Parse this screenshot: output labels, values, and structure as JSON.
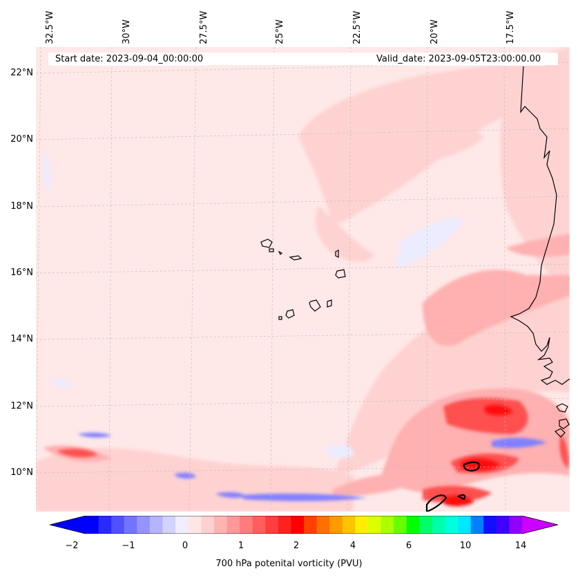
{
  "header": {
    "start_date": "Start date: 2023-09-04_00:00:00",
    "valid_date": "Valid_date: 2023-09-05T23:00:00.00"
  },
  "longitude_labels": [
    "32.5°W",
    "30°W",
    "27.5°W",
    "25°W",
    "22.5°W",
    "20°W",
    "17.5°W"
  ],
  "latitude_labels": [
    "22°N",
    "20°N",
    "18°N",
    "16°N",
    "14°N",
    "12°N",
    "10°N"
  ],
  "colorbar": {
    "title": "700 hPa potenital vorticity (PVU)",
    "tick_labels": [
      "−2",
      "−1",
      "0",
      "1",
      "2",
      "4",
      "6",
      "10",
      "14"
    ],
    "colors": [
      "#0000ff",
      "#2a2aff",
      "#5050ff",
      "#7474ff",
      "#9494ff",
      "#b4b4ff",
      "#d2d2ff",
      "#eeeeff",
      "#ffe6e6",
      "#ffd0d0",
      "#ffb4b4",
      "#ff9898",
      "#ff7c7c",
      "#ff5e5e",
      "#ff3e3e",
      "#ff2020",
      "#ff0000",
      "#ff4000",
      "#ff7000",
      "#ff9a00",
      "#ffc400",
      "#ffee00",
      "#dcff00",
      "#aaff00",
      "#66ff00",
      "#00ff00",
      "#00ff66",
      "#00ffaa",
      "#00ffdd",
      "#00e8ff",
      "#0080ff",
      "#1010ff",
      "#4000ff",
      "#9000ff"
    ],
    "under_color": "#0000ff",
    "over_color": "#cc00ff"
  },
  "map": {
    "background_color": "#ffe8e8",
    "gridlines": true,
    "features": [
      "Cape Verde islands",
      "West African coastline"
    ]
  }
}
